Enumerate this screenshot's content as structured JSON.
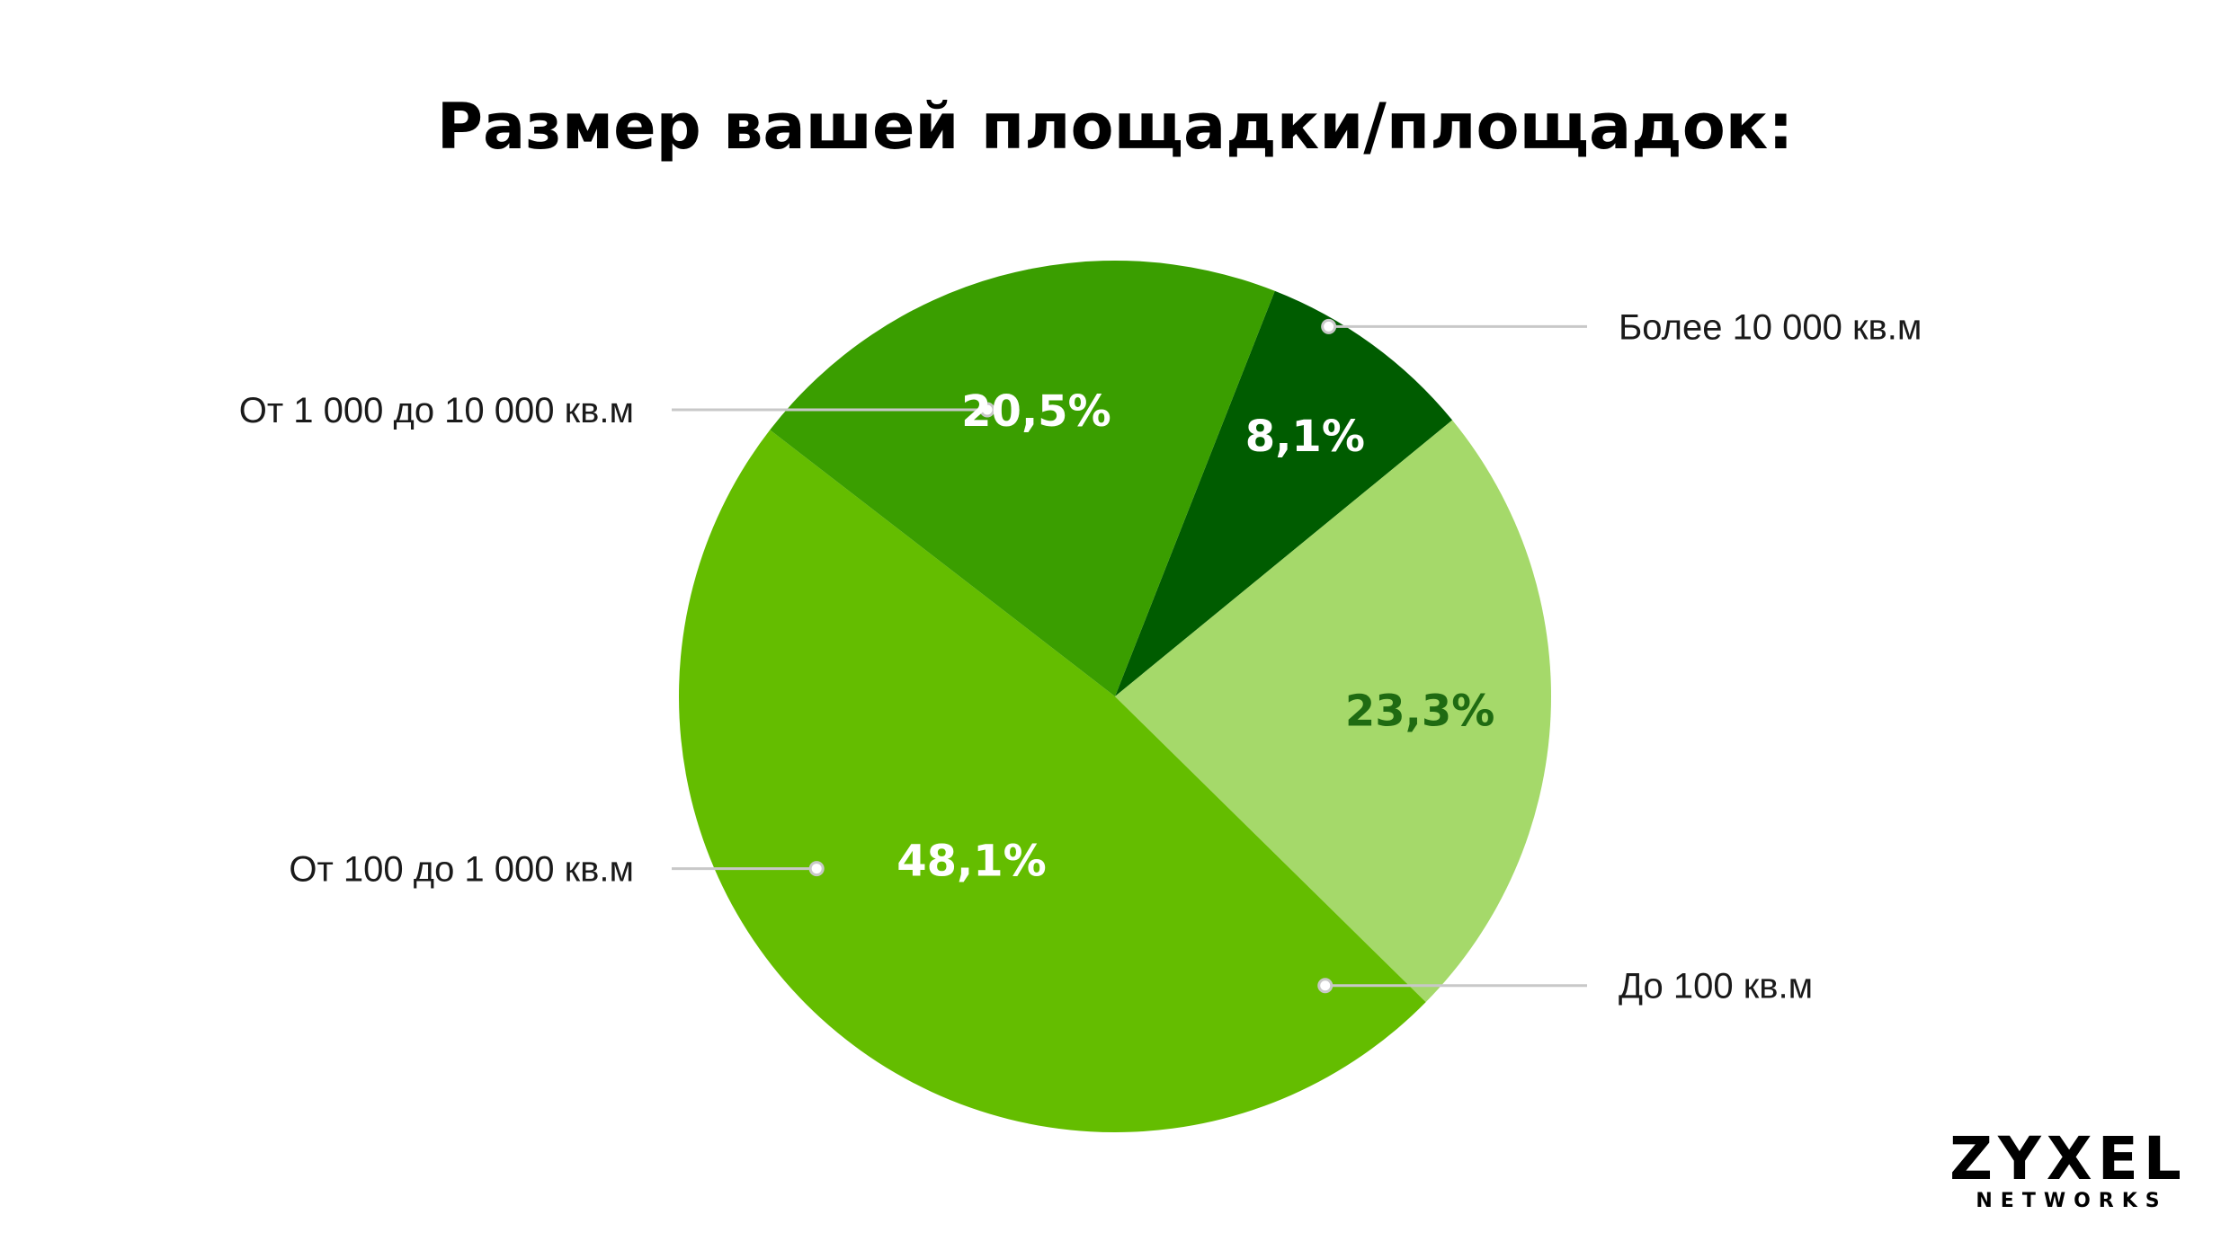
{
  "chart_data": {
    "type": "pie",
    "title": "Размер вашей площадки/площадок:",
    "slices": [
      {
        "label": "Более 10 000 кв.м",
        "value": 8.1,
        "value_label": "8,1%",
        "color": "#005c00",
        "text_color": "#ffffff"
      },
      {
        "label": "До 100 кв.м",
        "value": 23.3,
        "value_label": "23,3%",
        "color": "#a5d96a",
        "text_color": "#1f6b12"
      },
      {
        "label": "От 100 до 1 000 кв.м",
        "value": 48.1,
        "value_label": "48,1%",
        "color": "#64bd00",
        "text_color": "#ffffff"
      },
      {
        "label": "От 1 000 до 10 000 кв.м",
        "value": 20.5,
        "value_label": "20,5%",
        "color": "#3a9e00",
        "text_color": "#ffffff"
      }
    ],
    "legend": "none"
  },
  "brand": {
    "logo_text": "ZYXEL",
    "logo_subtext": "NETWORKS",
    "logo_accent_color": "#64bd00"
  },
  "colors": {
    "leader_line": "#c8c8c8"
  }
}
